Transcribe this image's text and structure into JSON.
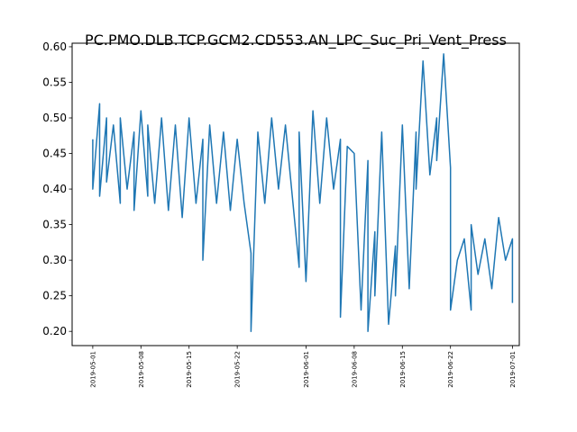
{
  "chart_data": {
    "type": "line",
    "title": "PC.PMO.DLB.TCP.GCM2.CD553.AN_LPC_Suc_Pri_Vent_Press",
    "xlabel": "",
    "ylabel": "",
    "xlim": [
      "2019-04-28",
      "2019-07-02"
    ],
    "ylim": [
      0.18,
      0.605
    ],
    "yticks": [
      0.2,
      0.25,
      0.3,
      0.35,
      0.4,
      0.45,
      0.5,
      0.55,
      0.6
    ],
    "ytick_labels": [
      "0.20",
      "0.25",
      "0.30",
      "0.35",
      "0.40",
      "0.45",
      "0.50",
      "0.55",
      "0.60"
    ],
    "xtick_labels": [
      "2019-05-01",
      "2019-05-08",
      "2019-05-15",
      "2019-05-22",
      "2019-06-01",
      "2019-06-08",
      "2019-06-15",
      "2019-06-22",
      "2019-07-01"
    ],
    "grid": false,
    "series": [
      {
        "color": "#1f77b4",
        "x": [
          "2019-05-01",
          "2019-05-01",
          "2019-05-02",
          "2019-05-02",
          "2019-05-03",
          "2019-05-03",
          "2019-05-04",
          "2019-05-05",
          "2019-05-05",
          "2019-05-06",
          "2019-05-07",
          "2019-05-07",
          "2019-05-08",
          "2019-05-09",
          "2019-05-09",
          "2019-05-10",
          "2019-05-11",
          "2019-05-12",
          "2019-05-13",
          "2019-05-14",
          "2019-05-15",
          "2019-05-16",
          "2019-05-17",
          "2019-05-17",
          "2019-05-18",
          "2019-05-19",
          "2019-05-20",
          "2019-05-21",
          "2019-05-22",
          "2019-05-23",
          "2019-05-24",
          "2019-05-24",
          "2019-05-25",
          "2019-05-26",
          "2019-05-27",
          "2019-05-28",
          "2019-05-29",
          "2019-05-30",
          "2019-05-31",
          "2019-05-31",
          "2019-06-01",
          "2019-06-02",
          "2019-06-03",
          "2019-06-04",
          "2019-06-05",
          "2019-06-06",
          "2019-06-06",
          "2019-06-07",
          "2019-06-08",
          "2019-06-09",
          "2019-06-10",
          "2019-06-10",
          "2019-06-11",
          "2019-06-11",
          "2019-06-12",
          "2019-06-13",
          "2019-06-14",
          "2019-06-14",
          "2019-06-15",
          "2019-06-16",
          "2019-06-17",
          "2019-06-17",
          "2019-06-18",
          "2019-06-19",
          "2019-06-20",
          "2019-06-20",
          "2019-06-21",
          "2019-06-22",
          "2019-06-22",
          "2019-06-23",
          "2019-06-24",
          "2019-06-25",
          "2019-06-25",
          "2019-06-26",
          "2019-06-27",
          "2019-06-28",
          "2019-06-29",
          "2019-06-30",
          "2019-07-01",
          "2019-07-01"
        ],
        "y": [
          0.47,
          0.4,
          0.52,
          0.39,
          0.5,
          0.41,
          0.49,
          0.38,
          0.5,
          0.4,
          0.48,
          0.37,
          0.51,
          0.39,
          0.49,
          0.38,
          0.5,
          0.37,
          0.49,
          0.36,
          0.5,
          0.38,
          0.47,
          0.3,
          0.49,
          0.38,
          0.48,
          0.37,
          0.47,
          0.38,
          0.31,
          0.2,
          0.48,
          0.38,
          0.5,
          0.4,
          0.49,
          0.39,
          0.29,
          0.48,
          0.27,
          0.51,
          0.38,
          0.5,
          0.4,
          0.47,
          0.22,
          0.46,
          0.45,
          0.23,
          0.44,
          0.2,
          0.34,
          0.25,
          0.48,
          0.21,
          0.32,
          0.25,
          0.49,
          0.26,
          0.48,
          0.4,
          0.58,
          0.42,
          0.5,
          0.44,
          0.59,
          0.43,
          0.23,
          0.3,
          0.33,
          0.23,
          0.35,
          0.28,
          0.33,
          0.26,
          0.36,
          0.3,
          0.33,
          0.24
        ]
      }
    ]
  }
}
